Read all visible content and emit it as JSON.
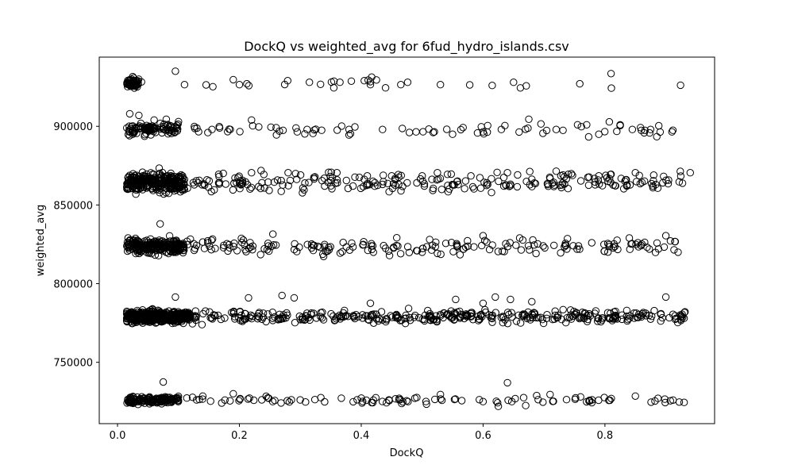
{
  "chart_data": {
    "type": "scatter",
    "title": "DockQ vs weighted_avg for 6fud_hydro_islands.csv",
    "xlabel": "DockQ",
    "ylabel": "weighted_avg",
    "xlim": [
      -0.03,
      0.98
    ],
    "ylim": [
      711000,
      944000
    ],
    "xticks": [
      0.0,
      0.2,
      0.4,
      0.6,
      0.8
    ],
    "xtick_labels": [
      "0.0",
      "0.2",
      "0.4",
      "0.6",
      "0.8"
    ],
    "yticks": [
      750000,
      800000,
      850000,
      900000
    ],
    "ytick_labels": [
      "750000",
      "800000",
      "850000",
      "900000"
    ],
    "grid": false,
    "marker": "open-circle",
    "marker_color": "#000000",
    "point_count_estimate": 1600,
    "clusters": [
      {
        "y_center": 927500,
        "y_spread": 3000,
        "dense_x_max": 0.035,
        "sparse_count": 22
      },
      {
        "y_center": 898000,
        "y_spread": 3500,
        "dense_x_max": 0.1,
        "sparse_count": 70
      },
      {
        "y_center": 864500,
        "y_spread": 5500,
        "dense_x_max": 0.11,
        "sparse_count": 260
      },
      {
        "y_center": 823500,
        "y_spread": 4500,
        "dense_x_max": 0.11,
        "sparse_count": 210
      },
      {
        "y_center": 779000,
        "y_spread": 3500,
        "dense_x_max": 0.12,
        "sparse_count": 420
      },
      {
        "y_center": 726000,
        "y_spread": 2200,
        "dense_x_max": 0.1,
        "sparse_count": 110
      }
    ],
    "points": [
      [
        0.02,
        927500
      ],
      [
        0.03,
        929000
      ],
      [
        0.095,
        935000
      ],
      [
        0.11,
        926500
      ],
      [
        0.2,
        926500
      ],
      [
        0.315,
        928000
      ],
      [
        0.365,
        928000
      ],
      [
        0.355,
        924500
      ],
      [
        0.405,
        929000
      ],
      [
        0.415,
        926500
      ],
      [
        0.425,
        929500
      ],
      [
        0.44,
        924500
      ],
      [
        0.465,
        926500
      ],
      [
        0.53,
        926500
      ],
      [
        0.615,
        926000
      ],
      [
        0.65,
        928000
      ],
      [
        0.81,
        933500
      ],
      [
        0.02,
        908000
      ],
      [
        0.035,
        907000
      ],
      [
        0.06,
        904000
      ],
      [
        0.08,
        904500
      ],
      [
        0.1,
        903000
      ],
      [
        0.155,
        898000
      ],
      [
        0.185,
        898000
      ],
      [
        0.22,
        904000
      ],
      [
        0.295,
        896500
      ],
      [
        0.335,
        897500
      ],
      [
        0.38,
        894500
      ],
      [
        0.435,
        898000
      ],
      [
        0.49,
        896500
      ],
      [
        0.52,
        896500
      ],
      [
        0.55,
        895000
      ],
      [
        0.6,
        896500
      ],
      [
        0.63,
        898000
      ],
      [
        0.675,
        904500
      ],
      [
        0.72,
        898000
      ],
      [
        0.755,
        901000
      ],
      [
        0.77,
        901000
      ],
      [
        0.79,
        895000
      ],
      [
        0.825,
        901000
      ],
      [
        0.845,
        898000
      ],
      [
        0.875,
        898000
      ],
      [
        0.91,
        896500
      ],
      [
        0.94,
        870500
      ],
      [
        0.88,
        869000
      ],
      [
        0.85,
        870500
      ],
      [
        0.81,
        869500
      ],
      [
        0.79,
        868500
      ],
      [
        0.74,
        869500
      ],
      [
        0.72,
        871500
      ],
      [
        0.64,
        870500
      ],
      [
        0.58,
        868500
      ],
      [
        0.525,
        870500
      ],
      [
        0.5,
        868500
      ],
      [
        0.45,
        868500
      ],
      [
        0.41,
        868500
      ],
      [
        0.36,
        870500
      ],
      [
        0.28,
        870500
      ],
      [
        0.22,
        870500
      ],
      [
        0.07,
        838000
      ],
      [
        0.255,
        831500
      ],
      [
        0.6,
        830500
      ],
      [
        0.66,
        829000
      ],
      [
        0.84,
        829000
      ],
      [
        0.9,
        830500
      ],
      [
        0.92,
        820000
      ],
      [
        0.5,
        820000
      ],
      [
        0.44,
        822500
      ],
      [
        0.42,
        820000
      ],
      [
        0.34,
        823500
      ],
      [
        0.27,
        792500
      ],
      [
        0.29,
        791000
      ],
      [
        0.215,
        791000
      ],
      [
        0.095,
        791500
      ],
      [
        0.62,
        791500
      ],
      [
        0.645,
        790000
      ],
      [
        0.68,
        788500
      ],
      [
        0.555,
        790000
      ],
      [
        0.6,
        787500
      ],
      [
        0.415,
        787500
      ],
      [
        0.815,
        782000
      ],
      [
        0.9,
        791500
      ],
      [
        0.93,
        778000
      ],
      [
        0.075,
        737500
      ],
      [
        0.64,
        737000
      ],
      [
        0.53,
        729500
      ],
      [
        0.6,
        725000
      ],
      [
        0.625,
        722000
      ],
      [
        0.67,
        722500
      ],
      [
        0.71,
        729500
      ],
      [
        0.76,
        728000
      ],
      [
        0.85,
        728500
      ],
      [
        0.93,
        724500
      ],
      [
        0.19,
        730000
      ],
      [
        0.14,
        728500
      ]
    ]
  }
}
